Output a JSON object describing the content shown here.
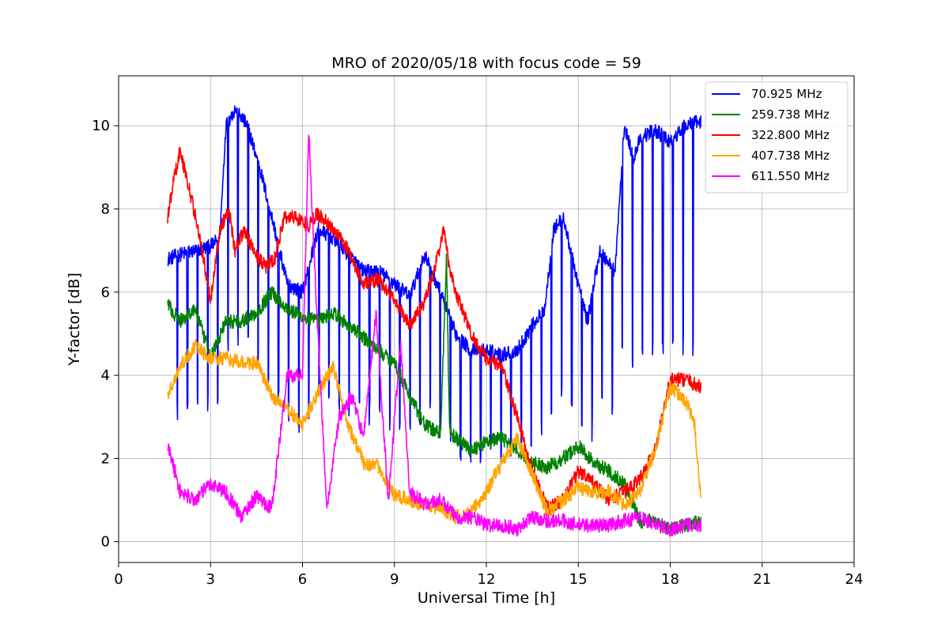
{
  "chart_data": {
    "type": "line",
    "title": "MRO of 2020/05/18 with focus code = 59",
    "xlabel": "Universal Time [h]",
    "ylabel": "Y-factor [dB]",
    "xlim": [
      0,
      24
    ],
    "ylim": [
      -0.5,
      11.2
    ],
    "xticks": [
      0,
      3,
      6,
      9,
      12,
      15,
      18,
      21,
      24
    ],
    "yticks": [
      0,
      2,
      4,
      6,
      8,
      10
    ],
    "grid": true,
    "legend_position": "top-right",
    "series": [
      {
        "name": "  70.925 MHz",
        "color": "#0000ff",
        "points": [
          [
            1.6,
            6.8
          ],
          [
            2.0,
            6.9
          ],
          [
            2.5,
            7.0
          ],
          [
            3.0,
            7.1
          ],
          [
            3.3,
            7.3
          ],
          [
            3.5,
            10.0
          ],
          [
            3.8,
            10.4
          ],
          [
            4.2,
            10.0
          ],
          [
            4.6,
            9.0
          ],
          [
            5.0,
            7.8
          ],
          [
            5.5,
            6.2
          ],
          [
            6.0,
            6.0
          ],
          [
            6.5,
            7.5
          ],
          [
            7.0,
            7.3
          ],
          [
            7.5,
            6.9
          ],
          [
            8.0,
            6.5
          ],
          [
            8.5,
            6.5
          ],
          [
            9.0,
            6.2
          ],
          [
            9.5,
            5.9
          ],
          [
            10.0,
            6.9
          ],
          [
            10.5,
            6.0
          ],
          [
            11.0,
            5.0
          ],
          [
            11.5,
            4.6
          ],
          [
            12.0,
            4.6
          ],
          [
            12.5,
            4.5
          ],
          [
            13.0,
            4.6
          ],
          [
            13.5,
            5.2
          ],
          [
            13.9,
            5.6
          ],
          [
            14.2,
            7.5
          ],
          [
            14.5,
            7.8
          ],
          [
            15.0,
            6.2
          ],
          [
            15.3,
            5.3
          ],
          [
            15.7,
            7.0
          ],
          [
            16.2,
            6.5
          ],
          [
            16.5,
            10.0
          ],
          [
            16.8,
            9.2
          ],
          [
            17.0,
            9.7
          ],
          [
            17.5,
            9.9
          ],
          [
            18.0,
            9.6
          ],
          [
            18.5,
            10.0
          ],
          [
            19.0,
            10.1
          ]
        ],
        "dip_interval_h": 0.33,
        "dip_depth": 0.6
      },
      {
        "name": "259.738 MHz",
        "color": "#008000",
        "points": [
          [
            1.6,
            5.7
          ],
          [
            2.0,
            5.3
          ],
          [
            2.5,
            5.6
          ],
          [
            3.0,
            4.4
          ],
          [
            3.5,
            5.3
          ],
          [
            4.0,
            5.3
          ],
          [
            4.5,
            5.5
          ],
          [
            5.0,
            6.0
          ],
          [
            5.5,
            5.6
          ],
          [
            6.0,
            5.4
          ],
          [
            6.5,
            5.3
          ],
          [
            7.0,
            5.5
          ],
          [
            7.5,
            5.2
          ],
          [
            8.0,
            4.9
          ],
          [
            8.5,
            4.6
          ],
          [
            9.0,
            4.3
          ],
          [
            9.5,
            3.5
          ],
          [
            10.0,
            2.8
          ],
          [
            10.5,
            2.6
          ],
          [
            10.7,
            6.8
          ],
          [
            10.8,
            2.6
          ],
          [
            11.0,
            2.5
          ],
          [
            11.5,
            2.2
          ],
          [
            12.0,
            2.4
          ],
          [
            12.5,
            2.5
          ],
          [
            13.0,
            2.2
          ],
          [
            13.5,
            1.9
          ],
          [
            14.0,
            1.8
          ],
          [
            14.5,
            2.0
          ],
          [
            15.0,
            2.3
          ],
          [
            15.5,
            1.9
          ],
          [
            16.0,
            1.7
          ],
          [
            16.5,
            1.4
          ],
          [
            17.0,
            0.5
          ],
          [
            17.5,
            0.5
          ],
          [
            18.0,
            0.3
          ],
          [
            18.5,
            0.4
          ],
          [
            19.0,
            0.5
          ]
        ]
      },
      {
        "name": "322.800 MHz",
        "color": "#ff0000",
        "points": [
          [
            1.6,
            7.8
          ],
          [
            1.8,
            8.7
          ],
          [
            2.0,
            9.4
          ],
          [
            2.3,
            8.5
          ],
          [
            2.6,
            7.5
          ],
          [
            3.0,
            5.8
          ],
          [
            3.3,
            7.5
          ],
          [
            3.6,
            8.0
          ],
          [
            3.8,
            7.0
          ],
          [
            4.1,
            7.5
          ],
          [
            4.4,
            7.0
          ],
          [
            4.8,
            6.6
          ],
          [
            5.1,
            6.8
          ],
          [
            5.4,
            7.8
          ],
          [
            5.8,
            7.8
          ],
          [
            6.2,
            7.6
          ],
          [
            6.5,
            7.9
          ],
          [
            7.0,
            7.5
          ],
          [
            7.5,
            7.0
          ],
          [
            8.0,
            6.2
          ],
          [
            8.5,
            6.3
          ],
          [
            9.0,
            5.8
          ],
          [
            9.5,
            5.2
          ],
          [
            10.0,
            5.8
          ],
          [
            10.3,
            6.5
          ],
          [
            10.6,
            7.5
          ],
          [
            10.8,
            6.6
          ],
          [
            11.0,
            6.0
          ],
          [
            11.5,
            5.0
          ],
          [
            12.0,
            4.4
          ],
          [
            12.5,
            4.2
          ],
          [
            13.0,
            3.0
          ],
          [
            13.5,
            1.7
          ],
          [
            14.0,
            0.8
          ],
          [
            14.5,
            1.0
          ],
          [
            15.0,
            1.7
          ],
          [
            15.5,
            1.4
          ],
          [
            16.0,
            1.0
          ],
          [
            16.5,
            1.2
          ],
          [
            17.0,
            1.5
          ],
          [
            17.5,
            2.2
          ],
          [
            18.0,
            3.9
          ],
          [
            18.5,
            3.9
          ],
          [
            19.0,
            3.7
          ]
        ]
      },
      {
        "name": "407.738 MHz",
        "color": "#ffa500",
        "points": [
          [
            1.6,
            3.5
          ],
          [
            2.0,
            4.2
          ],
          [
            2.5,
            4.7
          ],
          [
            3.0,
            4.4
          ],
          [
            3.5,
            4.4
          ],
          [
            4.0,
            4.3
          ],
          [
            4.5,
            4.3
          ],
          [
            5.0,
            3.5
          ],
          [
            5.5,
            3.2
          ],
          [
            6.0,
            2.8
          ],
          [
            6.5,
            3.6
          ],
          [
            7.0,
            4.2
          ],
          [
            7.5,
            2.8
          ],
          [
            8.0,
            1.9
          ],
          [
            8.5,
            1.8
          ],
          [
            9.0,
            1.1
          ],
          [
            9.5,
            1.0
          ],
          [
            10.0,
            0.9
          ],
          [
            10.5,
            0.8
          ],
          [
            11.0,
            0.6
          ],
          [
            11.5,
            0.7
          ],
          [
            12.0,
            1.2
          ],
          [
            12.5,
            1.9
          ],
          [
            13.0,
            2.5
          ],
          [
            13.5,
            1.6
          ],
          [
            14.0,
            0.7
          ],
          [
            14.5,
            1.0
          ],
          [
            15.0,
            1.3
          ],
          [
            15.5,
            1.2
          ],
          [
            16.0,
            1.2
          ],
          [
            16.5,
            0.9
          ],
          [
            17.0,
            1.2
          ],
          [
            17.5,
            2.2
          ],
          [
            18.0,
            3.7
          ],
          [
            18.5,
            3.4
          ],
          [
            18.8,
            2.8
          ],
          [
            19.0,
            1.0
          ]
        ]
      },
      {
        "name": "611.550 MHz",
        "color": "#ff00ff",
        "points": [
          [
            1.6,
            2.3
          ],
          [
            1.8,
            1.8
          ],
          [
            2.0,
            1.2
          ],
          [
            2.5,
            1.0
          ],
          [
            3.0,
            1.4
          ],
          [
            3.5,
            1.2
          ],
          [
            4.0,
            0.6
          ],
          [
            4.5,
            1.1
          ],
          [
            5.0,
            0.8
          ],
          [
            5.5,
            4.0
          ],
          [
            6.0,
            4.0
          ],
          [
            6.2,
            9.9
          ],
          [
            6.5,
            5.0
          ],
          [
            6.8,
            0.8
          ],
          [
            7.2,
            3.0
          ],
          [
            7.6,
            3.5
          ],
          [
            8.0,
            2.5
          ],
          [
            8.4,
            5.5
          ],
          [
            8.8,
            1.0
          ],
          [
            9.2,
            4.8
          ],
          [
            9.5,
            1.2
          ],
          [
            10.0,
            0.9
          ],
          [
            10.5,
            1.0
          ],
          [
            11.0,
            0.6
          ],
          [
            11.5,
            0.6
          ],
          [
            12.0,
            0.4
          ],
          [
            12.5,
            0.4
          ],
          [
            13.0,
            0.3
          ],
          [
            13.5,
            0.6
          ],
          [
            14.0,
            0.5
          ],
          [
            14.5,
            0.5
          ],
          [
            15.0,
            0.4
          ],
          [
            15.5,
            0.4
          ],
          [
            16.0,
            0.4
          ],
          [
            16.5,
            0.5
          ],
          [
            17.0,
            0.6
          ],
          [
            17.5,
            0.4
          ],
          [
            18.0,
            0.3
          ],
          [
            18.5,
            0.4
          ],
          [
            19.0,
            0.4
          ]
        ]
      }
    ]
  }
}
